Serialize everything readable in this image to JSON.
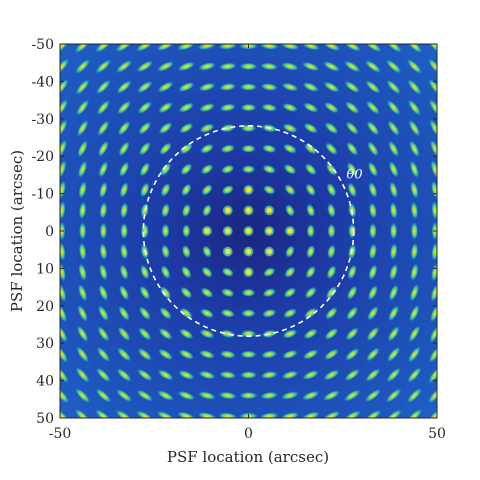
{
  "chart_data": {
    "type": "heatmap",
    "title": "",
    "xlabel": "PSF location (arcsec)",
    "ylabel": "PSF location (arcsec)",
    "xlim": [
      -50,
      50
    ],
    "ylim": [
      -50,
      50
    ],
    "y_axis_direction": "reversed",
    "x_ticks": [
      "-50",
      "0",
      "50"
    ],
    "y_ticks": [
      "-50",
      "-40",
      "-30",
      "-20",
      "-10",
      "0",
      "10",
      "20",
      "30",
      "40",
      "50"
    ],
    "grid": false,
    "colormap": "parula",
    "grid_of_psf_centers_arcsec": {
      "spacing": 5.5,
      "range": [
        -49.5,
        49.5
      ]
    },
    "inner_round_psf_radius_arcsec": 12,
    "annotation_circle": {
      "label": "θ0",
      "center": [
        0,
        0
      ],
      "radius_arcsec": 28,
      "style": "white dashed"
    }
  },
  "colors": {
    "background_low": "#1b2a9c",
    "mid": "#1a8ad8",
    "high": "#38c7a2",
    "peak": "#f2e824",
    "circle": "#ffffff"
  }
}
